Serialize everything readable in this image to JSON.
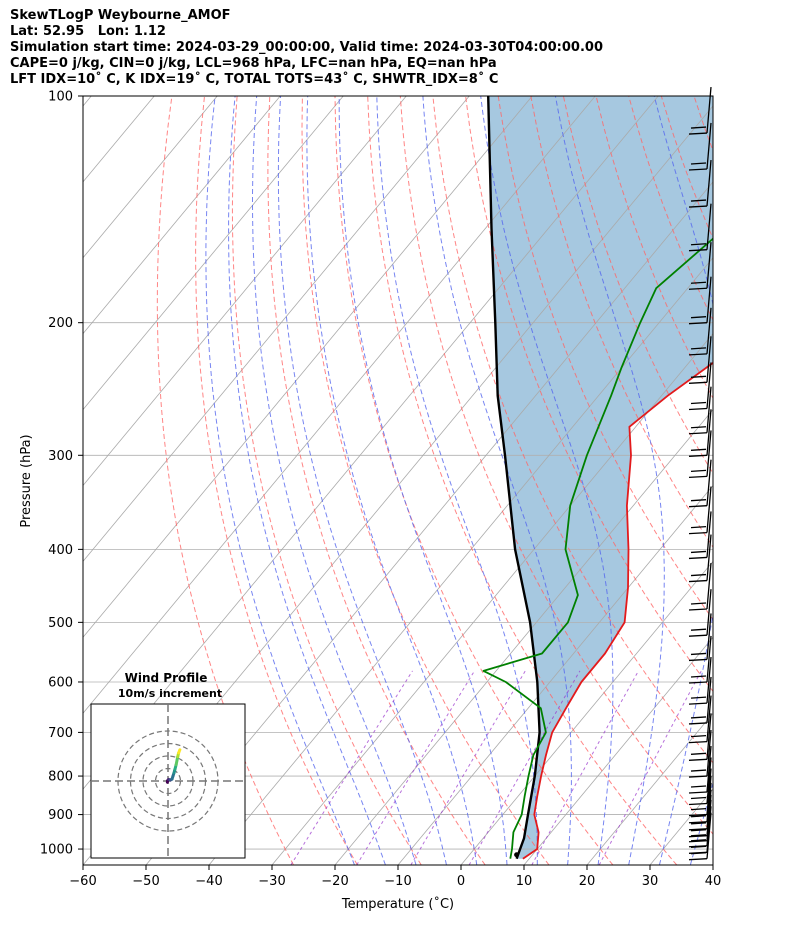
{
  "header": {
    "line1": "SkewTLogP Weybourne_AMOF",
    "line2": "Lat: 52.95   Lon: 1.12",
    "line3": "Simulation start time: 2024-03-29_00:00:00, Valid time: 2024-03-30T04:00:00.00",
    "line4": "CAPE=0 j/kg, CIN=0 j/kg, LCL=968 hPa, LFC=nan hPa, EQ=nan hPa",
    "line5": "LFT IDX=10˚ C, K IDX=19˚ C, TOTAL TOTS=43˚ C, SHWTR_IDX=8˚ C"
  },
  "chart_data": {
    "type": "line",
    "xlabel": "Temperature ($^\\circ$C)",
    "xlabel_display": "Temperature (˚C)",
    "ylabel": "Pressure (hPa)",
    "xlim": [
      -60,
      40
    ],
    "ylim": [
      1050,
      100
    ],
    "y_scale": "log",
    "grid": true,
    "x_ticks": [
      -60,
      -50,
      -40,
      -30,
      -20,
      -10,
      0,
      10,
      20,
      30,
      40
    ],
    "x_tick_labels": [
      "−60",
      "−50",
      "−40",
      "−30",
      "−20",
      "−10",
      "0",
      "10",
      "20",
      "30",
      "40"
    ],
    "y_ticks": [
      1000,
      900,
      800,
      700,
      600,
      500,
      400,
      300,
      200,
      100
    ],
    "y_tick_labels": [
      "1000",
      "900",
      "800",
      "700",
      "600",
      "500",
      "400",
      "300",
      "200",
      "100"
    ],
    "colors": {
      "temperature": "#e31a1c",
      "dewpoint": "#008000",
      "parcel": "#000000",
      "shade": "#a6c8e0",
      "isotherm": "#aaaaaa",
      "dry_adiabat": "#ff6666",
      "moist_adiabat": "#5566ee",
      "mixing_ratio": "#9933cc"
    },
    "series": [
      {
        "name": "temperature",
        "points": [
          [
            1030,
            9
          ],
          [
            1000,
            10
          ],
          [
            950,
            8
          ],
          [
            900,
            5
          ],
          [
            850,
            3
          ],
          [
            800,
            1
          ],
          [
            750,
            -1
          ],
          [
            700,
            -3
          ],
          [
            650,
            -4
          ],
          [
            600,
            -5
          ],
          [
            550,
            -5
          ],
          [
            500,
            -6
          ],
          [
            450,
            -10
          ],
          [
            400,
            -15
          ],
          [
            350,
            -21
          ],
          [
            300,
            -27
          ],
          [
            275,
            -31
          ],
          [
            250,
            -29
          ],
          [
            225,
            -26
          ],
          [
            200,
            -24
          ],
          [
            175,
            -19
          ],
          [
            150,
            -13
          ],
          [
            125,
            -8
          ],
          [
            110,
            -4
          ],
          [
            100,
            -2
          ]
        ]
      },
      {
        "name": "dewpoint",
        "points": [
          [
            1030,
            7
          ],
          [
            1000,
            6
          ],
          [
            950,
            4
          ],
          [
            900,
            3
          ],
          [
            850,
            1
          ],
          [
            800,
            -1
          ],
          [
            750,
            -3
          ],
          [
            700,
            -4
          ],
          [
            650,
            -8
          ],
          [
            600,
            -17
          ],
          [
            580,
            -22
          ],
          [
            550,
            -15
          ],
          [
            500,
            -15
          ],
          [
            460,
            -17
          ],
          [
            400,
            -25
          ],
          [
            350,
            -30
          ],
          [
            300,
            -34
          ],
          [
            250,
            -38
          ],
          [
            230,
            -40
          ],
          [
            200,
            -43
          ],
          [
            180,
            -45
          ],
          [
            150,
            -42
          ],
          [
            125,
            -38
          ],
          [
            110,
            -35
          ],
          [
            100,
            -33
          ]
        ]
      },
      {
        "name": "parcel",
        "points": [
          [
            1030,
            8
          ],
          [
            968,
            6.5
          ],
          [
            900,
            4
          ],
          [
            800,
            0
          ],
          [
            700,
            -5
          ],
          [
            600,
            -12
          ],
          [
            500,
            -21
          ],
          [
            400,
            -33
          ],
          [
            300,
            -47
          ],
          [
            250,
            -56
          ],
          [
            200,
            -66
          ],
          [
            150,
            -79
          ],
          [
            100,
            -97
          ]
        ]
      }
    ],
    "wind_barbs": {
      "pressures": [
        1030,
        1010,
        990,
        975,
        960,
        940,
        920,
        900,
        870,
        840,
        800,
        760,
        720,
        680,
        640,
        600,
        560,
        520,
        480,
        440,
        410,
        380,
        350,
        320,
        300,
        280,
        260,
        240,
        220,
        200,
        180,
        160,
        140,
        125,
        112
      ]
    },
    "inset": {
      "title": "Wind Profile",
      "subtitle": "10m/s increment",
      "rings": [
        10,
        20,
        30,
        40
      ],
      "hodograph": [
        [
          -0.5,
          -1
        ],
        [
          -0.3,
          0.3
        ],
        [
          0.5,
          1.2
        ],
        [
          1.8,
          0.8
        ],
        [
          3.2,
          1.5
        ],
        [
          4.0,
          4.0
        ],
        [
          4.8,
          6.5
        ],
        [
          5.6,
          9.5
        ],
        [
          6.5,
          13
        ],
        [
          7.2,
          16.5
        ],
        [
          7.8,
          19.5
        ],
        [
          8.5,
          22.5
        ],
        [
          9.5,
          25
        ]
      ]
    }
  }
}
